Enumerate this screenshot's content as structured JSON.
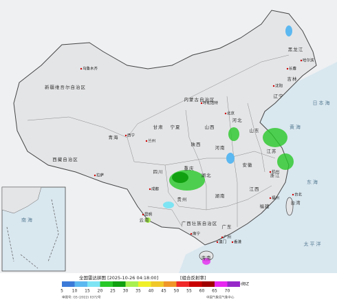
{
  "title": "全国雷达拼图 [2025-10-26 04:18:00]",
  "product": "[组合反射率]",
  "unit": "dBZ",
  "approval": "审图号: GS (2022) 0372号",
  "source": "中国气象局气象中心",
  "legend": {
    "ticks": [
      5,
      10,
      15,
      20,
      25,
      30,
      35,
      40,
      45,
      50,
      55,
      60,
      65,
      70
    ],
    "colors": [
      "#3c7ad8",
      "#5cb8f0",
      "#7de4f4",
      "#28c828",
      "#10a010",
      "#a8f050",
      "#f0f028",
      "#f0c828",
      "#f09628",
      "#f02828",
      "#c80000",
      "#a00000",
      "#e628f0",
      "#9628c8"
    ]
  },
  "regions": [
    "新疆维吾尔自治区",
    "西藏自治区",
    "青海",
    "甘肃",
    "内蒙古自治区",
    "黑龙江",
    "吉林",
    "辽宁",
    "河北",
    "山西",
    "陕西",
    "宁夏",
    "四川",
    "重庆",
    "湖北",
    "河南",
    "山东",
    "江苏",
    "安徽",
    "浙江",
    "江西",
    "湖南",
    "贵州",
    "云南",
    "广西壮族自治区",
    "广东",
    "福建",
    "台湾",
    "海南"
  ],
  "cities": [
    "乌鲁木齐",
    "拉萨",
    "西宁",
    "兰州",
    "呼和浩特",
    "北京",
    "哈尔滨",
    "长春",
    "沈阳",
    "成都",
    "昆明",
    "南宁",
    "广州",
    "杭州",
    "福州",
    "台北",
    "香港",
    "澳门"
  ],
  "seas": [
    "日本海",
    "黄海",
    "东海",
    "太平洋",
    "南海"
  ]
}
